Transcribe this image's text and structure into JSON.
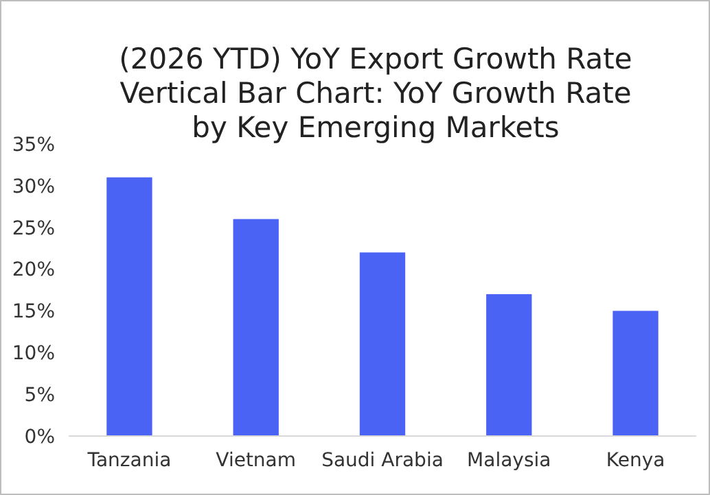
{
  "chart_data": {
    "type": "bar",
    "title": "(2026 YTD) YoY Export Growth Rate\nVertical Bar Chart: YoY Growth Rate\nby Key Emerging Markets",
    "categories": [
      "Tanzania",
      "Vietnam",
      "Saudi Arabia",
      "Malaysia",
      "Kenya"
    ],
    "values": [
      31,
      26,
      22,
      17,
      15
    ],
    "color": "#4a63f5",
    "ylim": [
      0,
      35
    ],
    "yticks": [
      {
        "value": 0,
        "label": "0%"
      },
      {
        "value": 5,
        "label": "5%"
      },
      {
        "value": 10,
        "label": "10%"
      },
      {
        "value": 15,
        "label": "15%"
      },
      {
        "value": 20,
        "label": "20%"
      },
      {
        "value": 25,
        "label": "25%"
      },
      {
        "value": 30,
        "label": "30%"
      },
      {
        "value": 35,
        "label": "35%"
      }
    ],
    "grid": false
  }
}
